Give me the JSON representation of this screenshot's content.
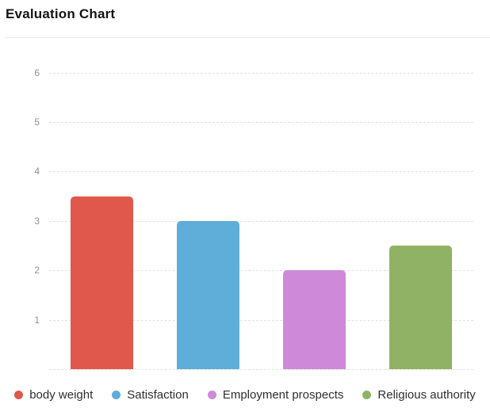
{
  "header": {
    "title": "Evaluation Chart"
  },
  "chart_data": {
    "type": "bar",
    "title": "Evaluation Chart",
    "categories": [
      "body weight",
      "Satisfaction",
      "Employment prospects",
      "Religious authority"
    ],
    "values": [
      3.5,
      3,
      2,
      2.5
    ],
    "colors": [
      "#e0584c",
      "#5fadd9",
      "#ce8ad8",
      "#90b265"
    ],
    "xlabel": "",
    "ylabel": "",
    "ylim": [
      0,
      6.5
    ],
    "yticks": [
      1,
      2,
      3,
      4,
      5,
      6
    ],
    "grid": "horizontal-dashed",
    "grid_color": "#e1e1e1",
    "legend_position": "bottom"
  }
}
